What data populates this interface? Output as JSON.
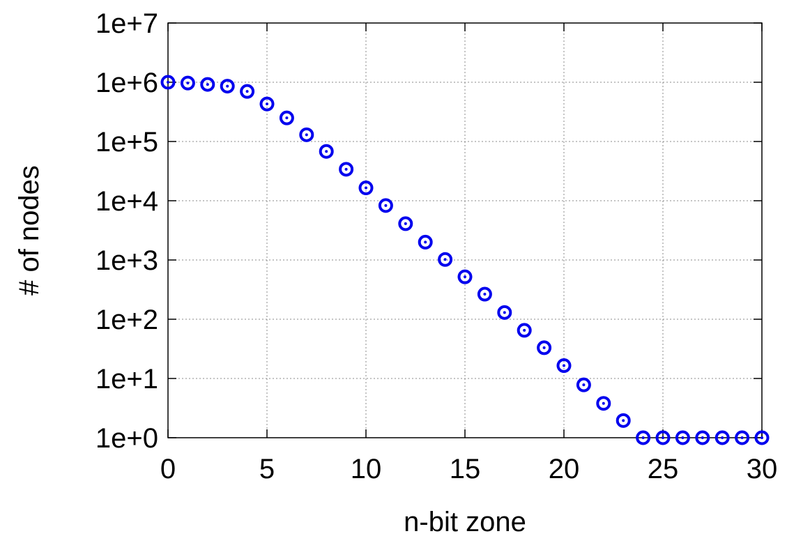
{
  "chart_data": {
    "type": "scatter",
    "title": "",
    "xlabel": "n-bit zone",
    "ylabel": "# of nodes",
    "xlim": [
      0,
      30
    ],
    "ylim": [
      1,
      10000000
    ],
    "y_scale": "log",
    "grid": true,
    "legend": "none",
    "x_ticks": [
      0,
      5,
      10,
      15,
      20,
      25,
      30
    ],
    "x_tick_labels": [
      "0",
      "5",
      "10",
      "15",
      "20",
      "25",
      "30"
    ],
    "y_ticks": [
      1,
      10,
      100,
      1000,
      10000,
      100000,
      1000000,
      10000000
    ],
    "y_tick_labels": [
      "1e+0",
      "1e+1",
      "1e+2",
      "1e+3",
      "1e+4",
      "1e+5",
      "1e+6",
      "1e+7"
    ],
    "marker": "circle-dot",
    "color": "#0000ee",
    "series": [
      {
        "x": [
          0,
          1,
          2,
          3,
          4,
          5,
          6,
          7,
          8,
          9,
          10,
          11,
          12,
          13,
          14,
          15,
          16,
          17,
          18,
          19,
          20,
          21,
          22,
          23,
          24,
          25,
          26,
          27,
          28,
          29,
          30
        ],
        "values": [
          1000000,
          970000,
          920000,
          860000,
          700000,
          430000,
          250000,
          130000,
          68000,
          34000,
          16500,
          8300,
          4100,
          2000,
          1020,
          520,
          265,
          130,
          65,
          33,
          16.5,
          7.8,
          3.8,
          1.95,
          1,
          1,
          1,
          1,
          1,
          1,
          1
        ]
      }
    ]
  }
}
